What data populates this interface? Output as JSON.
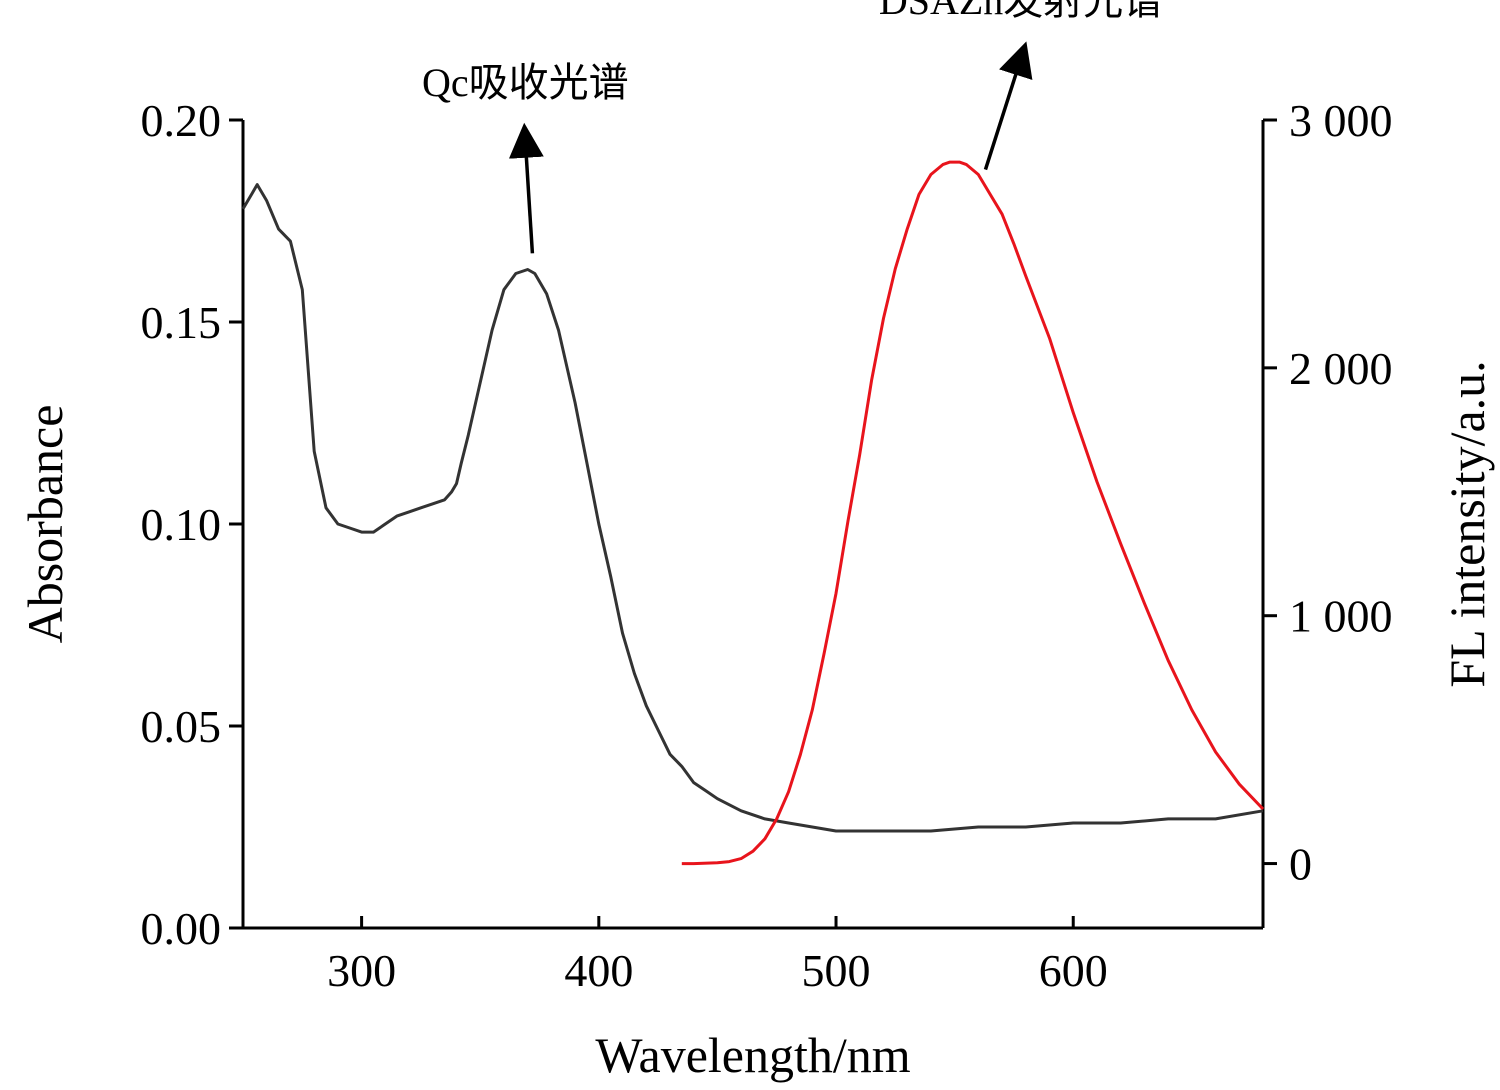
{
  "chart_data": {
    "type": "line",
    "title": "",
    "xlabel": "Wavelength/nm",
    "ylabel_left": "Absorbance",
    "ylabel_right": "FL intensity/a.u.",
    "xlim": [
      250,
      680
    ],
    "ylim_left": [
      0.0,
      0.2
    ],
    "ylim_right": [
      -260,
      3000
    ],
    "x_ticks": [
      "300",
      "400",
      "500",
      "600"
    ],
    "x_tick_values": [
      300,
      400,
      500,
      600
    ],
    "y_left_ticks": [
      "0.00",
      "0.05",
      "0.10",
      "0.15",
      "0.20"
    ],
    "y_left_tick_values": [
      0.0,
      0.05,
      0.1,
      0.15,
      0.2
    ],
    "y_right_ticks": [
      "0",
      "1 000",
      "2 000",
      "3 000"
    ],
    "y_right_tick_values": [
      0,
      1000,
      2000,
      3000
    ],
    "grid": false,
    "series": [
      {
        "name": "Qc吸收光谱",
        "axis": "left",
        "color": "#333333",
        "x": [
          250,
          254,
          256,
          260,
          265,
          270,
          275,
          280,
          285,
          290,
          295,
          300,
          305,
          310,
          315,
          320,
          325,
          330,
          335,
          338,
          340,
          342,
          345,
          350,
          355,
          360,
          365,
          370,
          373,
          378,
          383,
          390,
          395,
          400,
          405,
          410,
          415,
          420,
          425,
          430,
          435,
          440,
          445,
          450,
          460,
          470,
          480,
          490,
          500,
          520,
          540,
          560,
          580,
          600,
          620,
          640,
          660,
          680
        ],
        "y": [
          0.178,
          0.182,
          0.184,
          0.18,
          0.173,
          0.17,
          0.158,
          0.118,
          0.104,
          0.1,
          0.099,
          0.098,
          0.098,
          0.1,
          0.102,
          0.103,
          0.104,
          0.105,
          0.106,
          0.108,
          0.11,
          0.115,
          0.122,
          0.135,
          0.148,
          0.158,
          0.162,
          0.163,
          0.162,
          0.157,
          0.148,
          0.13,
          0.115,
          0.1,
          0.087,
          0.073,
          0.063,
          0.055,
          0.049,
          0.043,
          0.04,
          0.036,
          0.034,
          0.032,
          0.029,
          0.027,
          0.026,
          0.025,
          0.024,
          0.024,
          0.024,
          0.025,
          0.025,
          0.026,
          0.026,
          0.027,
          0.027,
          0.029
        ]
      },
      {
        "name": "DSAZn发射光谱",
        "axis": "right",
        "color": "#e8141c",
        "x": [
          435,
          440,
          450,
          455,
          460,
          465,
          470,
          475,
          480,
          485,
          490,
          495,
          500,
          505,
          510,
          515,
          520,
          525,
          530,
          535,
          540,
          545,
          548,
          552,
          555,
          560,
          565,
          570,
          575,
          580,
          590,
          600,
          610,
          620,
          630,
          640,
          650,
          660,
          670,
          680
        ],
        "y": [
          0,
          0,
          3,
          8,
          20,
          50,
          100,
          180,
          290,
          440,
          620,
          850,
          1090,
          1380,
          1650,
          1950,
          2200,
          2400,
          2560,
          2700,
          2780,
          2820,
          2830,
          2830,
          2820,
          2780,
          2700,
          2620,
          2500,
          2370,
          2120,
          1820,
          1540,
          1290,
          1050,
          820,
          620,
          450,
          320,
          220
        ]
      }
    ],
    "annotations": [
      {
        "text": "Qc吸收光谱",
        "arrow_tail": [
          372,
          0.167
        ],
        "arrow_head": [
          369,
          0.195
        ]
      },
      {
        "text": "DSAZn发射光谱",
        "arrow_tail": [
          563,
          2800
        ],
        "arrow_head": [
          578,
          3250
        ]
      }
    ]
  }
}
